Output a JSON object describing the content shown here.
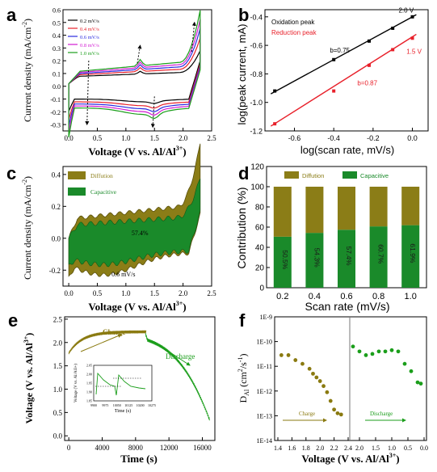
{
  "colors": {
    "black": "#000000",
    "red": "#e8202a",
    "blue": "#2a2ae0",
    "magenta": "#d21bd2",
    "green": "#1b9e1b",
    "olive": "#8a7a10",
    "cap_green": "#1a8a2a",
    "diff_olive": "#8b7d17",
    "dark_olive": "#7a6e12"
  },
  "panels": {
    "a": {
      "letter": "a",
      "xlabel": "Voltage (V vs. Al/Al",
      "xlabel_sup": "3+",
      "xlabel_end": ")",
      "ylabel": "Current density (mA/cm",
      "ylabel_sup": "-2",
      "ylabel_end": ")"
    },
    "b": {
      "letter": "b",
      "xlabel": "log(scan rate, mV/s)",
      "ylabel": "log(peak current, mA)"
    },
    "c": {
      "letter": "c",
      "xlabel": "Voltage (V vs. Al/Al",
      "xlabel_sup": "3+",
      "xlabel_end": ")",
      "ylabel": "Current density (mA/cm",
      "ylabel_sup": "-2",
      "ylabel_end": ")"
    },
    "d": {
      "letter": "d",
      "xlabel": "Scan rate (mV/s)",
      "ylabel": "Contribution (%)"
    },
    "e": {
      "letter": "e",
      "xlabel": "Time (s)",
      "ylabel": "Voltage (V vs. Al/Al",
      "ylabel_sup": "3+",
      "ylabel_end": ")"
    },
    "f": {
      "letter": "f",
      "xlabel": "Voltage (V vs. Al/Al",
      "xlabel_sup": "3+",
      "xlabel_end": ")",
      "ylabel": "D",
      "ylabel_sub": "Al",
      "ylabel_unit": " (cm",
      "ylabel_sup": "2",
      "ylabel_unit_end": "/s",
      "ylabel_sup2": "-1",
      "ylabel_end": ")"
    }
  },
  "chart_data": [
    {
      "id": "a",
      "type": "line",
      "title": "",
      "xlabel": "Voltage (V vs. Al/Al3+)",
      "ylabel": "Current density (mA/cm-2)",
      "xlim": [
        -0.1,
        2.5
      ],
      "ylim": [
        -0.35,
        0.6
      ],
      "xticks": [
        "0.0",
        "0.5",
        "1.0",
        "1.5",
        "2.0",
        "2.5"
      ],
      "yticks": [
        "-0.3",
        "-0.2",
        "-0.1",
        "0.0",
        "0.1",
        "0.2",
        "0.3",
        "0.4",
        "0.5",
        "0.6"
      ],
      "legend_placement": "top-left",
      "series": [
        {
          "name": "0.2 mV/s",
          "color_key": "black",
          "scale": 0.42
        },
        {
          "name": "0.4 mV/s",
          "color_key": "red",
          "scale": 0.6
        },
        {
          "name": "0.6 mV/s",
          "color_key": "blue",
          "scale": 0.74
        },
        {
          "name": "0.8 mV/s",
          "color_key": "magenta",
          "scale": 0.87
        },
        {
          "name": "1.0 mV/s",
          "color_key": "green",
          "scale": 1.0
        }
      ]
    },
    {
      "id": "b",
      "type": "scatter",
      "title": "",
      "xlabel": "log(scan rate, mV/s)",
      "ylabel": "log(peak current, mA)",
      "xlim": [
        -0.75,
        0.08
      ],
      "ylim": [
        -1.2,
        -0.35
      ],
      "xticks": [
        "-0.6",
        "-0.4",
        "-0.2",
        "0.0"
      ],
      "yticks": [
        "-1.2",
        "-1.0",
        "-0.8",
        "-0.6",
        "-0.4"
      ],
      "legend_placement": "top-left",
      "series": [
        {
          "name": "Oxidation peak",
          "color_key": "black",
          "x": [
            -0.7,
            -0.4,
            -0.22,
            -0.1,
            0.0
          ],
          "y": [
            -0.92,
            -0.7,
            -0.57,
            -0.48,
            -0.4
          ],
          "fit": {
            "slope": 0.75,
            "intercept": -0.4
          }
        },
        {
          "name": "Reduction peak",
          "color_key": "red",
          "x": [
            -0.7,
            -0.4,
            -0.22,
            -0.1,
            0.0
          ],
          "y": [
            -1.15,
            -0.92,
            -0.74,
            -0.63,
            -0.55
          ],
          "fit": {
            "slope": 0.87,
            "intercept": -0.54
          }
        }
      ],
      "annotations": [
        {
          "text": "2.0 V",
          "color_key": "black",
          "x": -0.07,
          "y": -0.37
        },
        {
          "text": "b=0.75",
          "color_key": "black",
          "x": -0.42,
          "y": -0.65
        },
        {
          "text": "1.5 V",
          "color_key": "red",
          "x": -0.03,
          "y": -0.66
        },
        {
          "text": "b=0.87",
          "color_key": "red",
          "x": -0.28,
          "y": -0.88
        }
      ]
    },
    {
      "id": "c",
      "type": "area",
      "title": "",
      "xlabel": "Voltage (V vs. Al/Al3+)",
      "ylabel": "Current density (mA/cm-2)",
      "xlim": [
        -0.1,
        2.5
      ],
      "ylim": [
        -0.3,
        0.45
      ],
      "xticks": [
        "0.0",
        "0.5",
        "1.0",
        "1.5",
        "2.0",
        "2.5"
      ],
      "yticks": [
        "-0.2",
        "0.0",
        "0.2",
        "0.4"
      ],
      "legend_placement": "top-left",
      "series": [
        {
          "name": "Diffution",
          "color_key": "diff_olive"
        },
        {
          "name": "Capacitive",
          "color_key": "cap_green"
        }
      ],
      "annotations": [
        {
          "text": "57.4%",
          "x": 1.1,
          "y": 0.02
        },
        {
          "text": "0.6 mV/s",
          "x": 0.75,
          "y": -0.24
        }
      ]
    },
    {
      "id": "d",
      "type": "bar",
      "title": "",
      "xlabel": "Scan rate (mV/s)",
      "ylabel": "Contribution (%)",
      "categories": [
        "0.2",
        "0.4",
        "0.6",
        "0.8",
        "1.0"
      ],
      "ylim": [
        0,
        120
      ],
      "yticks": [
        "0",
        "20",
        "40",
        "60",
        "80",
        "100",
        "120"
      ],
      "legend_placement": "top",
      "series": [
        {
          "name": "Capacitive",
          "color_key": "cap_green",
          "values": [
            50.5,
            54.3,
            57.4,
            60.7,
            61.9
          ]
        },
        {
          "name": "Diffution",
          "color_key": "diff_olive",
          "values": [
            49.5,
            45.7,
            42.6,
            39.3,
            38.1
          ]
        }
      ],
      "bar_labels": [
        "50.5%",
        "54.3%",
        "57.4%",
        "60.7%",
        "61.9%"
      ]
    },
    {
      "id": "e",
      "type": "line",
      "title": "",
      "xlabel": "Time (s)",
      "ylabel": "Voltage (V vs. Al/Al3+)",
      "xlim": [
        -500,
        17500
      ],
      "ylim": [
        -0.1,
        2.55
      ],
      "xticks": [
        "0",
        "4000",
        "8000",
        "12000",
        "16000"
      ],
      "yticks": [
        "0.0",
        "0.5",
        "1.0",
        "1.5",
        "2.0",
        "2.5"
      ],
      "annotations": [
        {
          "text": "Charge",
          "color_key": "olive"
        },
        {
          "text": "Discharge",
          "color_key": "green"
        }
      ],
      "inset": {
        "xlabel": "Time (s)",
        "ylabel": "Voltage (V vs. Al/Al3+)",
        "xticks": [
          "9900",
          "9975",
          "10050",
          "10125",
          "10200",
          "10275"
        ],
        "yticks": [
          "1.85",
          "1.90",
          "1.95",
          "2.00",
          "2.05"
        ]
      }
    },
    {
      "id": "f",
      "type": "scatter",
      "title": "",
      "xlabel": "Voltage (V vs. Al/Al3+)",
      "ylabel": "D_Al (cm2/s-1)",
      "y_scale": "log",
      "ylim_exp": [
        -14,
        -9
      ],
      "yticks": [
        "1E-14",
        "1E-13",
        "1E-12",
        "1E-11",
        "1E-10",
        "1E-9"
      ],
      "xticks_left": [
        "1.4",
        "1.6",
        "1.8",
        "2.0",
        "2.2",
        "2.4"
      ],
      "xticks_right": [
        "2.0",
        "1.5",
        "1.0",
        "0.5",
        "0.0"
      ],
      "series": [
        {
          "name": "Charge",
          "color_key": "olive",
          "x": [
            1.45,
            1.55,
            1.65,
            1.75,
            1.85,
            1.9,
            1.95,
            2.0,
            2.05,
            2.1,
            2.15,
            2.2,
            2.25,
            2.3
          ],
          "logy": [
            -10.55,
            -10.55,
            -10.75,
            -10.9,
            -11.1,
            -11.3,
            -11.45,
            -11.6,
            -11.8,
            -12.05,
            -12.4,
            -12.75,
            -12.9,
            -12.95
          ]
        },
        {
          "name": "Discharge",
          "color_key": "green",
          "x": [
            2.2,
            2.0,
            1.8,
            1.6,
            1.4,
            1.2,
            1.0,
            0.8,
            0.6,
            0.4,
            0.2,
            0.1
          ],
          "logy": [
            -10.2,
            -10.4,
            -10.55,
            -10.5,
            -10.4,
            -10.4,
            -10.35,
            -10.4,
            -10.9,
            -11.2,
            -11.65,
            -11.7
          ]
        }
      ]
    }
  ]
}
